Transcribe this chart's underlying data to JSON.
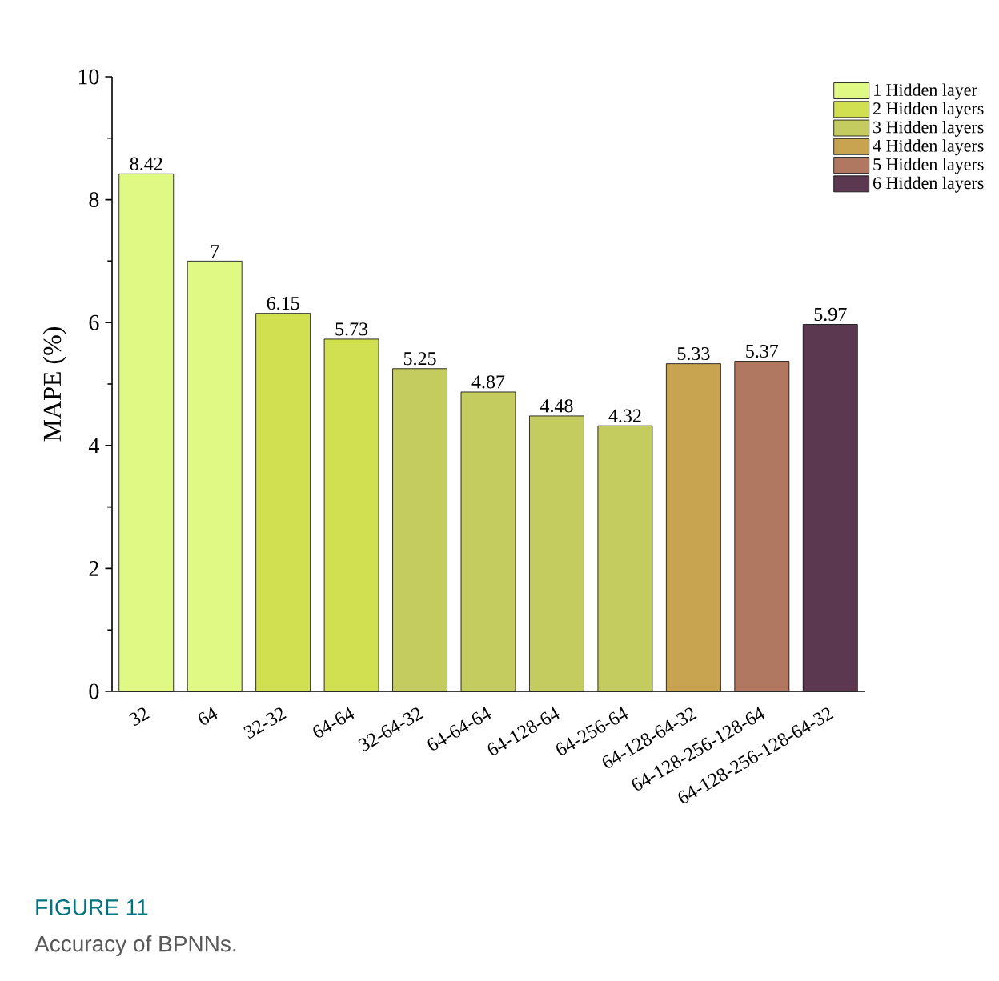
{
  "chart_data": {
    "type": "bar",
    "ylabel": "MAPE (%)",
    "categories": [
      "32",
      "64",
      "32-32",
      "64-64",
      "32-64-32",
      "64-64-64",
      "64-128-64",
      "64-256-64",
      "64-128-64-32",
      "64-128-256-128-64",
      "64-128-256-128-64-32"
    ],
    "series": [
      {
        "name": "1 Hidden layer",
        "color": "#e0f884",
        "values": [
          8.42,
          7,
          null,
          null,
          null,
          null,
          null,
          null,
          null,
          null,
          null
        ]
      },
      {
        "name": "2 Hidden layers",
        "color": "#d0e050",
        "values": [
          null,
          null,
          6.15,
          5.73,
          null,
          null,
          null,
          null,
          null,
          null,
          null
        ]
      },
      {
        "name": "3 Hidden layers",
        "color": "#c4cc60",
        "values": [
          null,
          null,
          null,
          null,
          5.25,
          4.87,
          4.48,
          4.32,
          null,
          null,
          null
        ]
      },
      {
        "name": "4 Hidden layers",
        "color": "#c8a450",
        "values": [
          null,
          null,
          null,
          null,
          null,
          null,
          null,
          null,
          5.33,
          null,
          null
        ]
      },
      {
        "name": "5 Hidden layers",
        "color": "#b07860",
        "values": [
          null,
          null,
          null,
          null,
          null,
          null,
          null,
          null,
          null,
          5.37,
          null
        ]
      },
      {
        "name": "6 Hidden layers",
        "color": "#5c3850",
        "values": [
          null,
          null,
          null,
          null,
          null,
          null,
          null,
          null,
          null,
          null,
          5.97
        ]
      }
    ],
    "ylim": [
      0,
      10
    ],
    "yticks": [
      0,
      2,
      4,
      6,
      8,
      10
    ],
    "data_labels": true,
    "legend": "top right",
    "grid": false,
    "annotations": [
      "FIGURE 11",
      "Accuracy of BPNNs."
    ]
  }
}
